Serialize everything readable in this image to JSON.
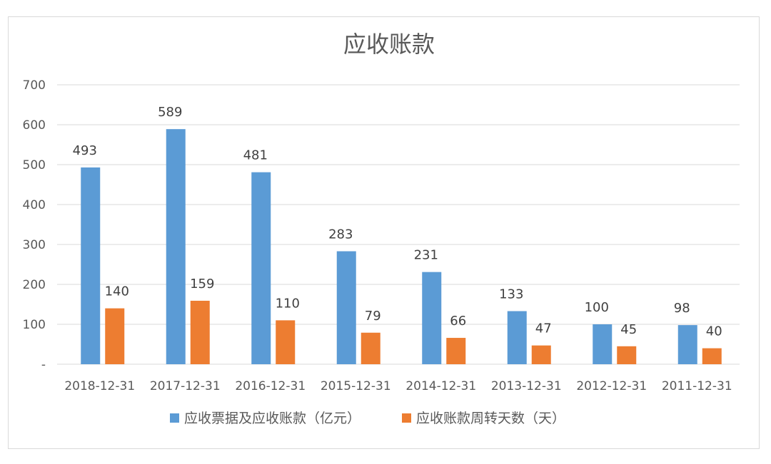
{
  "chart_data": {
    "type": "bar",
    "title": "应收账款",
    "categories": [
      "2018-12-31",
      "2017-12-31",
      "2016-12-31",
      "2015-12-31",
      "2014-12-31",
      "2013-12-31",
      "2012-12-31",
      "2011-12-31"
    ],
    "series": [
      {
        "name": "应收票据及应收账款（亿元）",
        "color": "#5b9bd5",
        "values": [
          493,
          589,
          481,
          283,
          231,
          133,
          100,
          98
        ]
      },
      {
        "name": "应收账款周转天数（天）",
        "color": "#ed7d31",
        "values": [
          140,
          159,
          110,
          79,
          66,
          47,
          45,
          40
        ]
      }
    ],
    "ylim": [
      0,
      700
    ],
    "yticks": [
      0,
      100,
      200,
      300,
      400,
      500,
      600,
      700
    ],
    "ytick_labels": [
      "-",
      "100",
      "200",
      "300",
      "400",
      "500",
      "600",
      "700"
    ],
    "grid": true,
    "legend": "bottom",
    "xlabel": "",
    "ylabel": ""
  }
}
